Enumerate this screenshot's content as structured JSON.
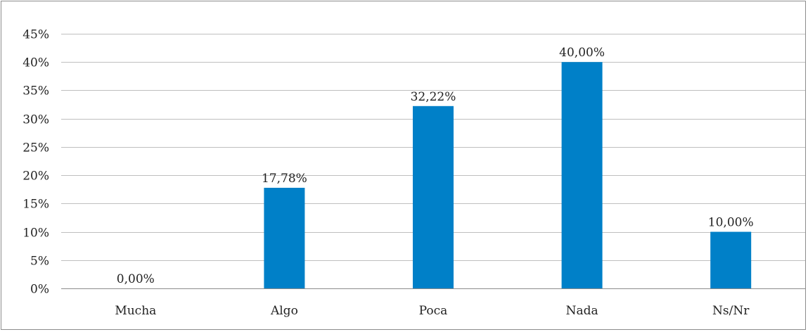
{
  "chart_data": {
    "type": "bar",
    "categories": [
      "Mucha",
      "Algo",
      "Poca",
      "Nada",
      "Ns/Nr"
    ],
    "values": [
      0.0,
      17.78,
      32.22,
      40.0,
      10.0
    ],
    "data_labels": [
      "0,00%",
      "17,78%",
      "32,22%",
      "40,00%",
      "10,00%"
    ],
    "y_ticks": [
      0,
      5,
      10,
      15,
      20,
      25,
      30,
      35,
      40,
      45
    ],
    "y_tick_labels": [
      "0%",
      "5%",
      "10%",
      "15%",
      "20%",
      "25%",
      "30%",
      "35%",
      "40%",
      "45%"
    ],
    "ylim": [
      0,
      45
    ],
    "grid": true,
    "legend": "none",
    "bar_color": "#0080c8",
    "grid_color": "#bfbfbf"
  }
}
